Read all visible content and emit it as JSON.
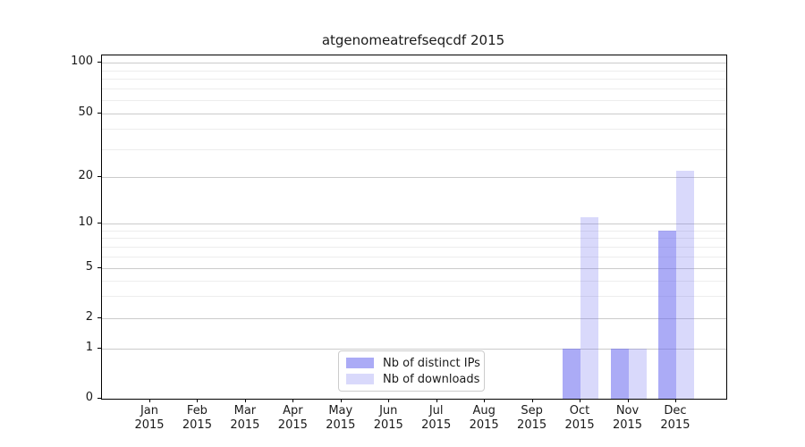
{
  "title": "atgenomeatrefseqcdf 2015",
  "colors": {
    "bar_base": "#6666ee",
    "ips_fill": "rgba(102,102,238,0.55)",
    "downloads_fill": "rgba(102,102,238,0.25)",
    "grid_major": "#cbcbcb",
    "grid_minor": "#ededed",
    "axis": "#000000",
    "text": "#1a1a1a",
    "legend_border": "#cccccc"
  },
  "legend": {
    "items": [
      {
        "label": "Nb of distinct IPs",
        "fill": "rgba(102,102,238,0.55)"
      },
      {
        "label": "Nb of downloads",
        "fill": "rgba(102,102,238,0.25)"
      }
    ]
  },
  "chart_data": {
    "type": "bar",
    "title": "atgenomeatrefseqcdf 2015",
    "categories": [
      "Jan 2015",
      "Feb 2015",
      "Mar 2015",
      "Apr 2015",
      "May 2015",
      "Jun 2015",
      "Jul 2015",
      "Aug 2015",
      "Sep 2015",
      "Oct 2015",
      "Nov 2015",
      "Dec 2015"
    ],
    "series": [
      {
        "name": "Nb of distinct IPs",
        "values": [
          0,
          0,
          0,
          0,
          0,
          0,
          0,
          0,
          0,
          1,
          1,
          9
        ]
      },
      {
        "name": "Nb of downloads",
        "values": [
          0,
          0,
          0,
          0,
          0,
          0,
          0,
          0,
          0,
          11,
          1,
          22
        ]
      }
    ],
    "xlabel": "",
    "ylabel": "",
    "ylim": [
      0,
      100
    ],
    "y_scale": "symlog-like (log above 1, linear 0-1)",
    "y_major_ticks": [
      0,
      1,
      2,
      5,
      10,
      20,
      50,
      100
    ],
    "y_minor_ticks": [
      3,
      4,
      6,
      7,
      8,
      9,
      30,
      40,
      60,
      70,
      80,
      90
    ],
    "grid": true,
    "legend_position": "lower center"
  }
}
